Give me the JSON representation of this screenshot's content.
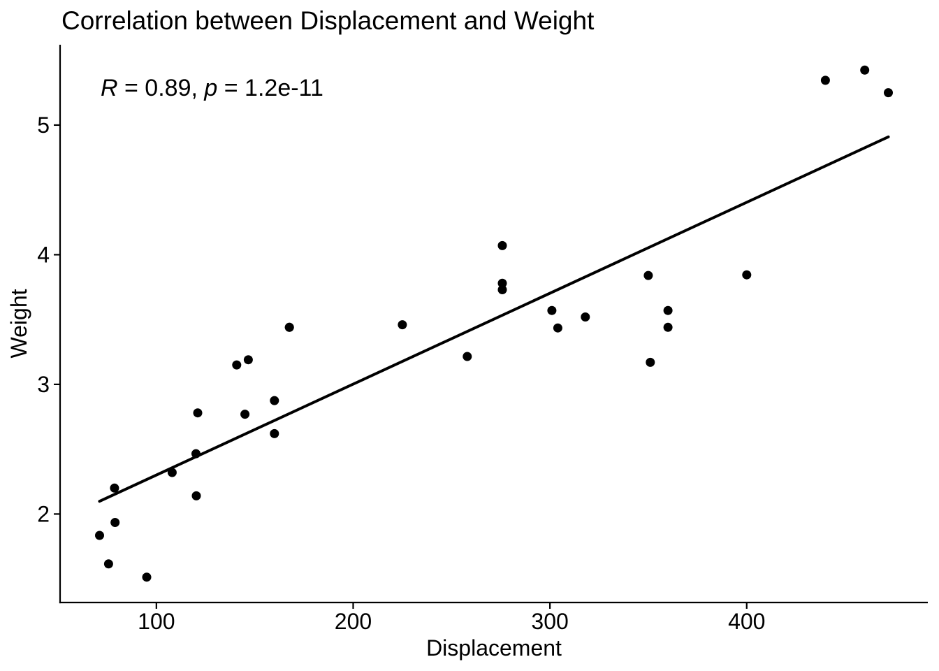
{
  "annotation": {
    "full": "R = 0.89, p = 1.2e-11",
    "r_symbol": "R",
    "r_text": " = 0.89, ",
    "p_symbol": "p",
    "p_text": " = 1.2e-11"
  },
  "colors": {
    "background": "#FFFFFF",
    "point": "#000000",
    "trend_line": "#000000",
    "axis": "#000000",
    "text": "#000000"
  },
  "chart_data": {
    "type": "scatter",
    "title": "Correlation between Displacement and Weight",
    "xlabel": "Displacement",
    "ylabel": "Weight",
    "x_ticks": [
      100,
      200,
      300,
      400
    ],
    "y_ticks": [
      2,
      3,
      4,
      5
    ],
    "x_domain": [
      51.055,
      492.045
    ],
    "y_domain": [
      1.3175,
      5.6196
    ],
    "grid": false,
    "legend": "none",
    "annotation": "R = 0.89, p = 1.2e-11",
    "points": [
      [
        160.0,
        2.62
      ],
      [
        160.0,
        2.875
      ],
      [
        108.0,
        2.32
      ],
      [
        258.0,
        3.215
      ],
      [
        360.0,
        3.44
      ],
      [
        225.0,
        3.46
      ],
      [
        360.0,
        3.57
      ],
      [
        146.7,
        3.19
      ],
      [
        140.8,
        3.15
      ],
      [
        167.6,
        3.44
      ],
      [
        167.6,
        3.44
      ],
      [
        275.8,
        4.07
      ],
      [
        275.8,
        3.73
      ],
      [
        275.8,
        3.78
      ],
      [
        472.0,
        5.25
      ],
      [
        460.0,
        5.424
      ],
      [
        440.0,
        5.345
      ],
      [
        78.7,
        2.2
      ],
      [
        75.7,
        1.615
      ],
      [
        71.1,
        1.835
      ],
      [
        120.1,
        2.465
      ],
      [
        318.0,
        3.52
      ],
      [
        304.0,
        3.435
      ],
      [
        350.0,
        3.84
      ],
      [
        400.0,
        3.845
      ],
      [
        79.0,
        1.935
      ],
      [
        120.3,
        2.14
      ],
      [
        95.1,
        1.513
      ],
      [
        351.0,
        3.17
      ],
      [
        145.0,
        2.77
      ],
      [
        301.0,
        3.57
      ],
      [
        121.0,
        2.78
      ]
    ],
    "trend_line": {
      "type": "linear",
      "x_start": 71.1,
      "y_start": 2.098,
      "x_end": 472.0,
      "y_end": 4.909
    }
  }
}
